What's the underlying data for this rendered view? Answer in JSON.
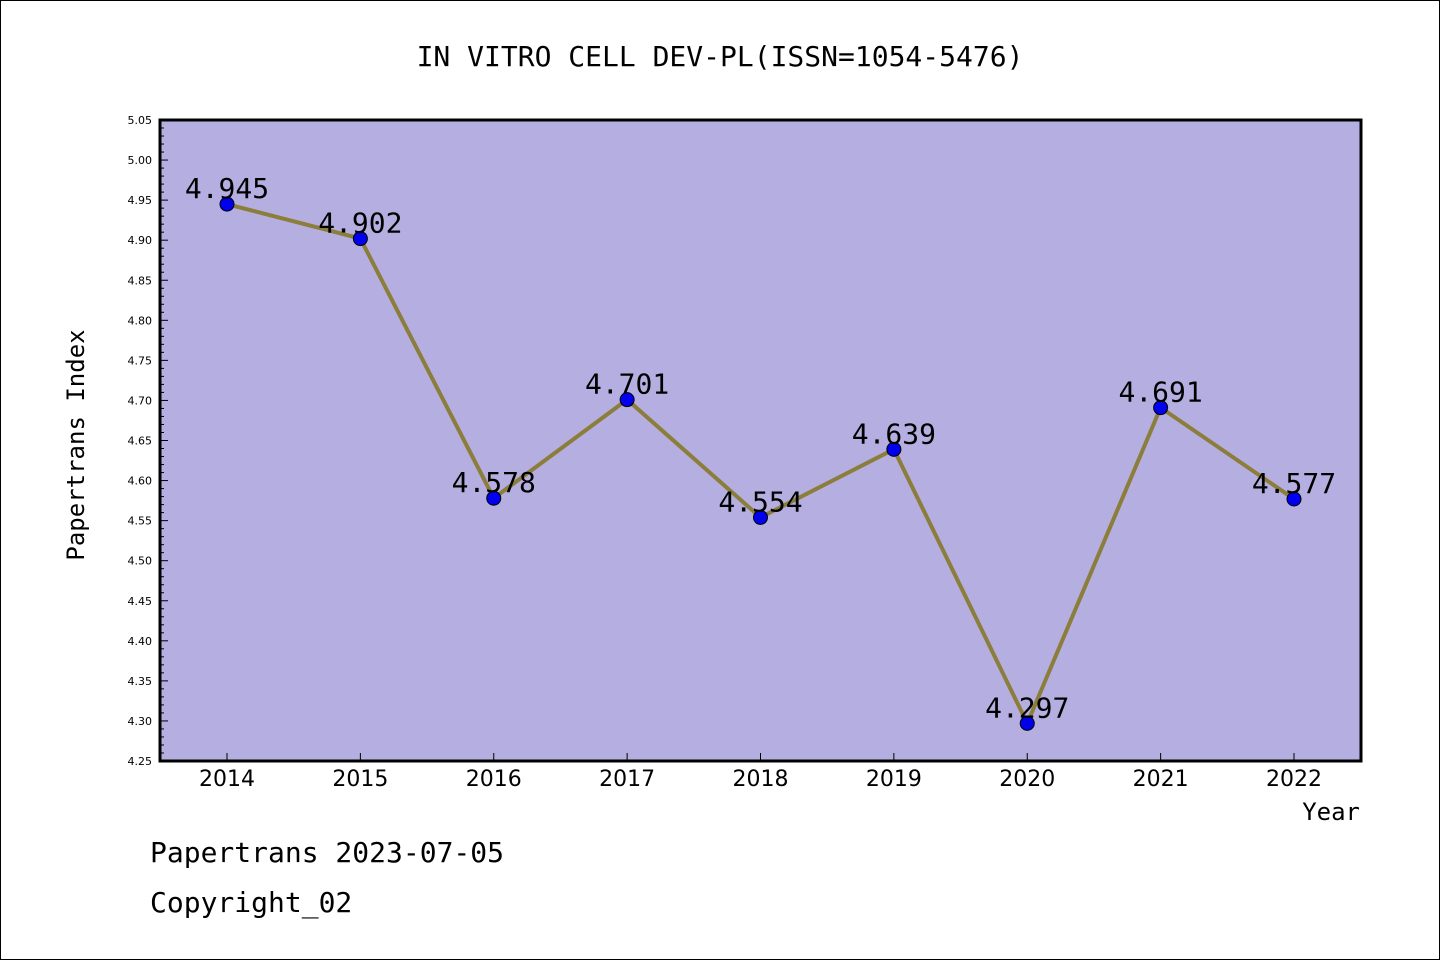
{
  "chart_data": {
    "type": "line",
    "title": "IN VITRO CELL DEV-PL(ISSN=1054-5476)",
    "xlabel": "Year",
    "ylabel": "Papertrans Index",
    "categories": [
      "2014",
      "2015",
      "2016",
      "2017",
      "2018",
      "2019",
      "2020",
      "2021",
      "2022"
    ],
    "values": [
      4.945,
      4.902,
      4.578,
      4.701,
      4.554,
      4.639,
      4.297,
      4.691,
      4.577
    ],
    "data_labels": [
      "4.945",
      "4.902",
      "4.578",
      "4.701",
      "4.554",
      "4.639",
      "4.297",
      "4.691",
      "4.577"
    ],
    "ylim": [
      4.25,
      5.05
    ],
    "yticks": [
      "4.25",
      "4.30",
      "4.35",
      "4.40",
      "4.45",
      "4.50",
      "4.55",
      "4.60",
      "4.65",
      "4.70",
      "4.75",
      "4.80",
      "4.85",
      "4.90",
      "4.95",
      "5.00",
      "5.05"
    ],
    "grid": false,
    "legend": "none",
    "colors": {
      "plot_background": "#b5aee1",
      "line": "#8b7d3a",
      "marker": "#0000ee"
    }
  },
  "footer": {
    "line1": "Papertrans 2023-07-05",
    "line2": "Copyright_02"
  }
}
